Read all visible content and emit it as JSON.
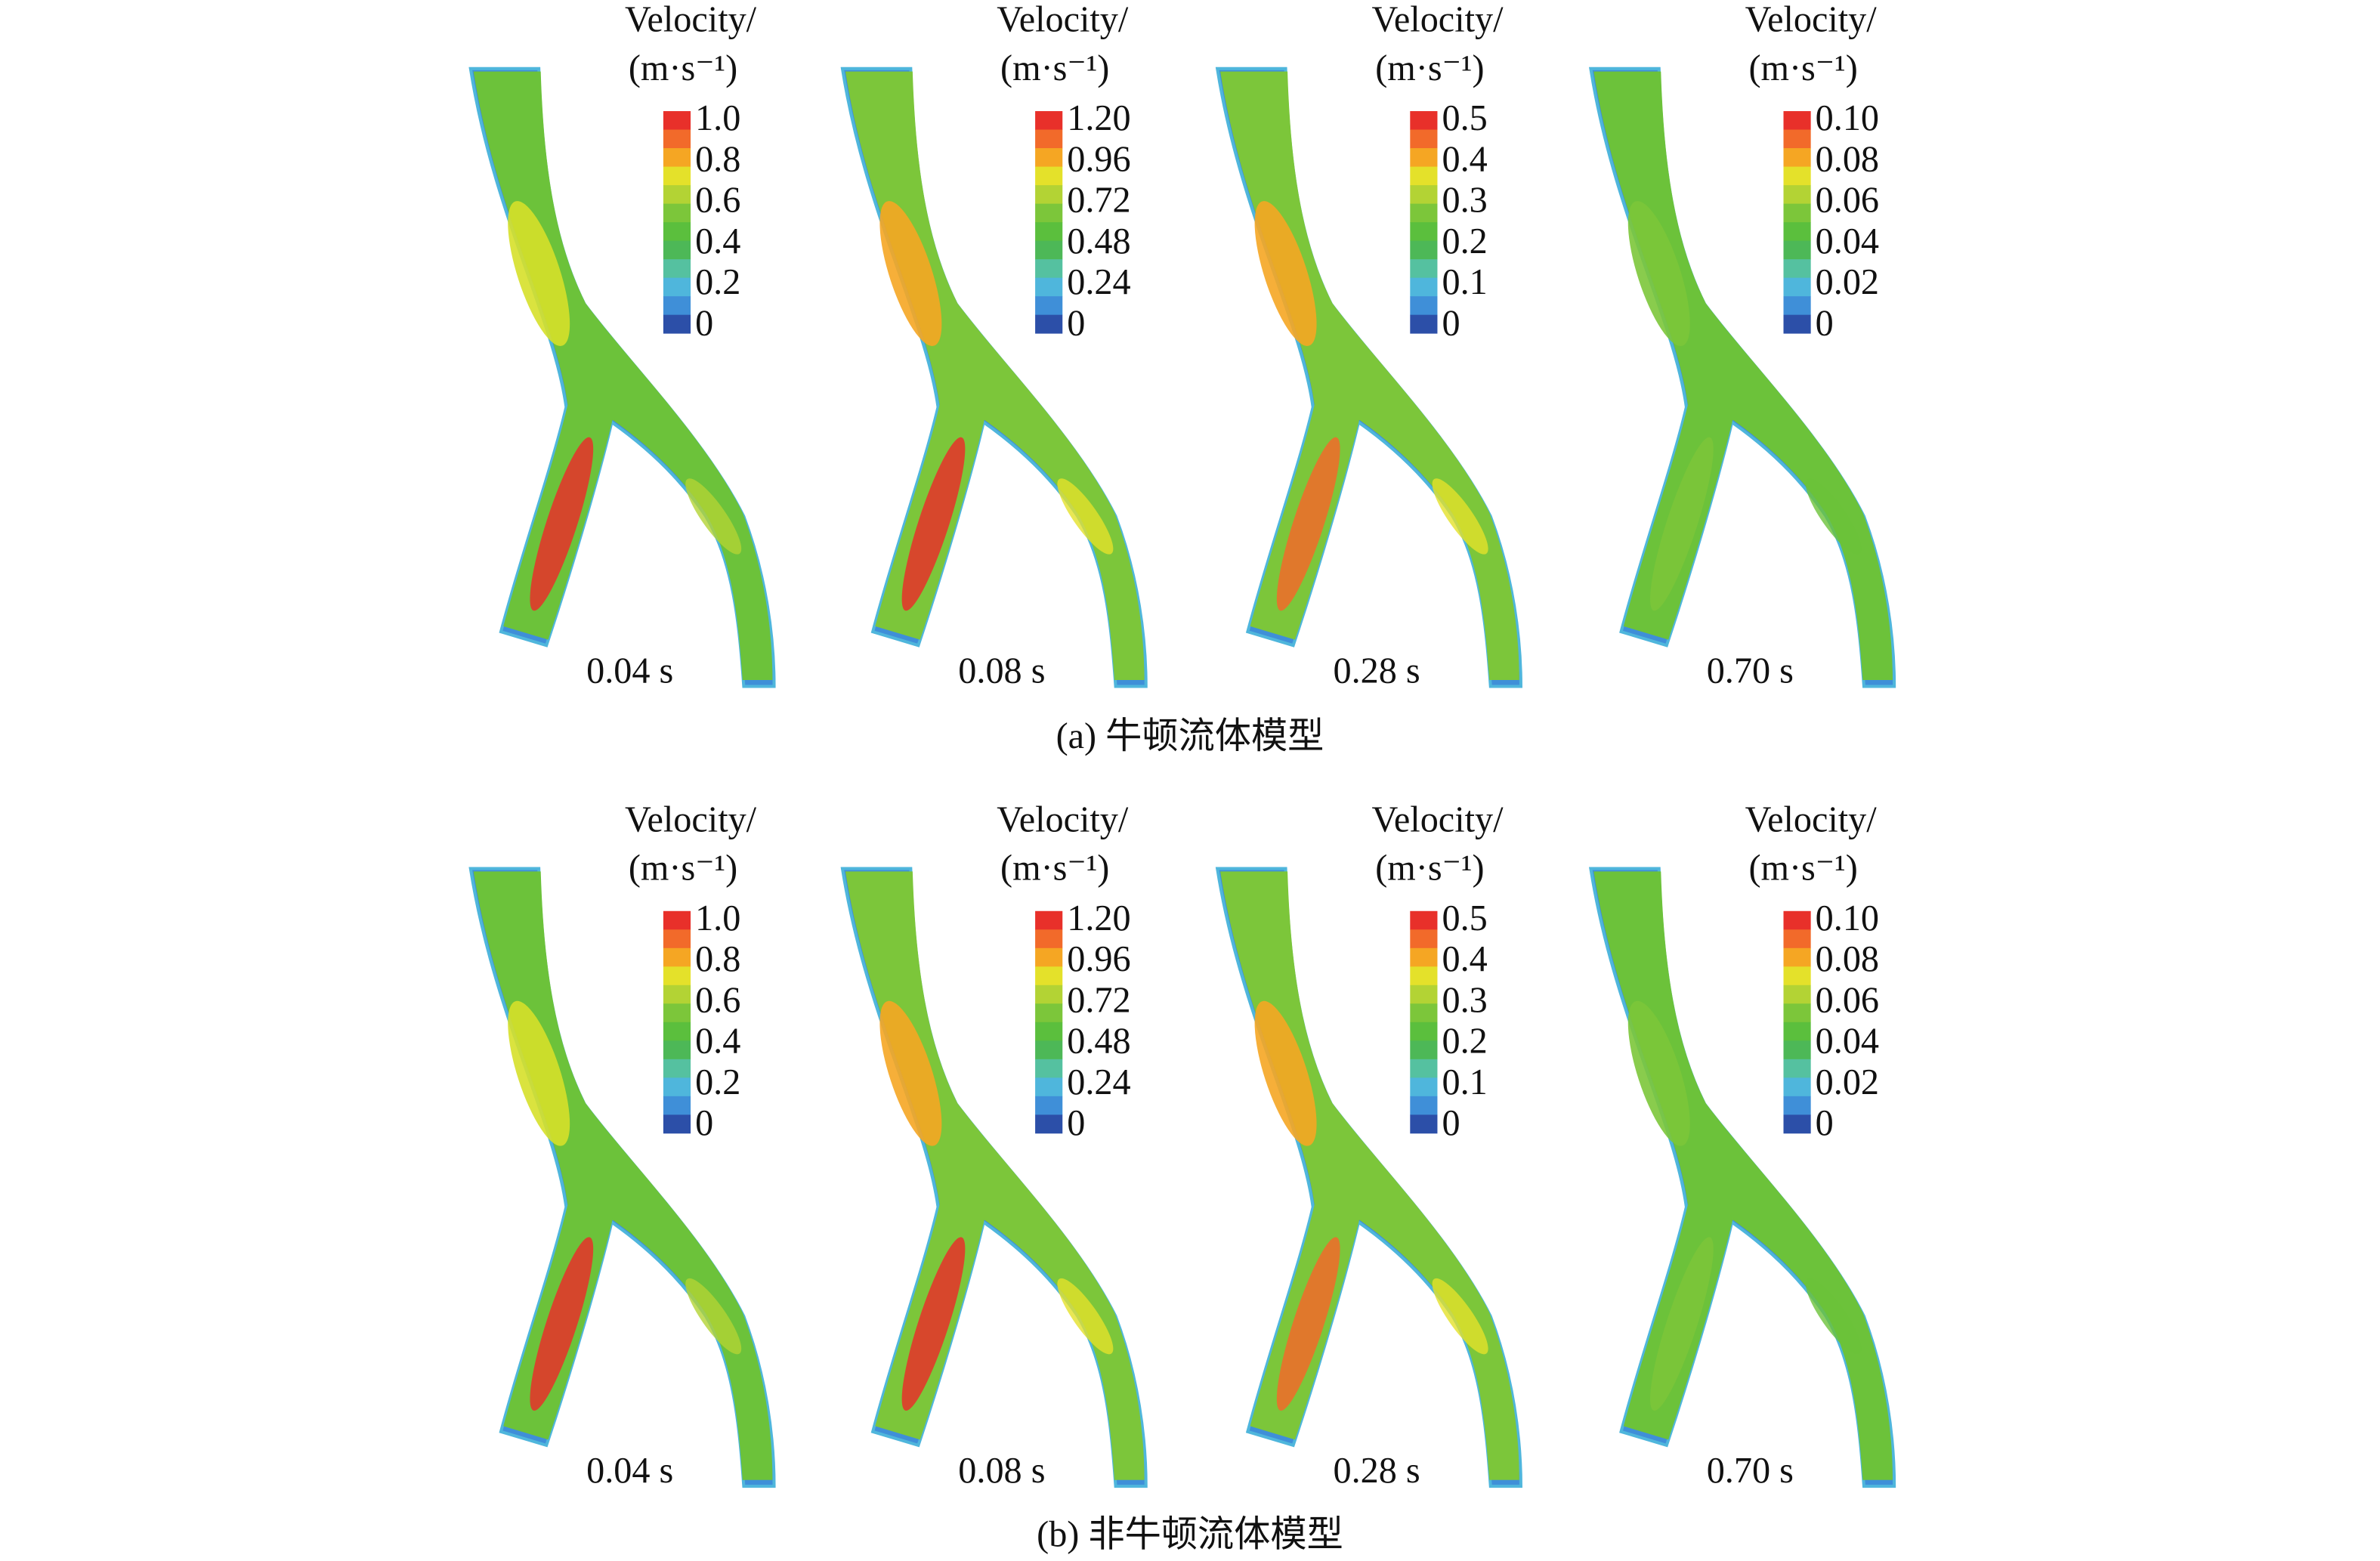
{
  "rows": [
    {
      "caption": "(a) 牛顿流体模型",
      "panels": [
        {
          "legend_title": "Velocity/",
          "legend_unit": "(m·s⁻¹)",
          "legend_labels": [
            "1.0",
            "0.8",
            "0.6",
            "0.4",
            "0.2",
            "0"
          ],
          "time": "0.04 s"
        },
        {
          "legend_title": "Velocity/",
          "legend_unit": "(m·s⁻¹)",
          "legend_labels": [
            "1.20",
            "0.96",
            "0.72",
            "0.48",
            "0.24",
            "0"
          ],
          "time": "0.08 s"
        },
        {
          "legend_title": "Velocity/",
          "legend_unit": "(m·s⁻¹)",
          "legend_labels": [
            "0.5",
            "0.4",
            "0.3",
            "0.2",
            "0.1",
            "0"
          ],
          "time": "0.28 s"
        },
        {
          "legend_title": "Velocity/",
          "legend_unit": "(m·s⁻¹)",
          "legend_labels": [
            "0.10",
            "0.08",
            "0.06",
            "0.04",
            "0.02",
            "0"
          ],
          "time": "0.70 s"
        }
      ]
    },
    {
      "caption": "(b) 非牛顿流体模型",
      "panels": [
        {
          "legend_title": "Velocity/",
          "legend_unit": "(m·s⁻¹)",
          "legend_labels": [
            "1.0",
            "0.8",
            "0.6",
            "0.4",
            "0.2",
            "0"
          ],
          "time": "0.04 s"
        },
        {
          "legend_title": "Velocity/",
          "legend_unit": "(m·s⁻¹)",
          "legend_labels": [
            "1.20",
            "0.96",
            "0.72",
            "0.48",
            "0.24",
            "0"
          ],
          "time": "0.08 s"
        },
        {
          "legend_title": "Velocity/",
          "legend_unit": "(m·s⁻¹)",
          "legend_labels": [
            "0.5",
            "0.4",
            "0.3",
            "0.2",
            "0.1",
            "0"
          ],
          "time": "0.28 s"
        },
        {
          "legend_title": "Velocity/",
          "legend_unit": "(m·s⁻¹)",
          "legend_labels": [
            "0.10",
            "0.08",
            "0.06",
            "0.04",
            "0.02",
            "0"
          ],
          "time": "0.70 s"
        }
      ]
    }
  ]
}
